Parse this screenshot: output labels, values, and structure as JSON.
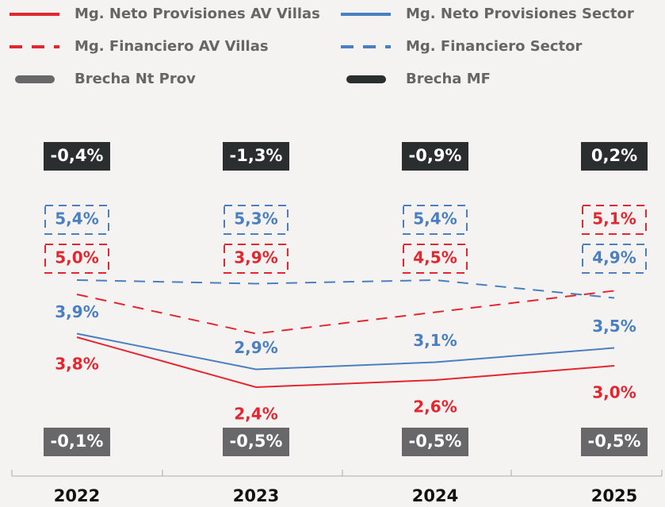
{
  "chart_data": {
    "type": "line",
    "categories": [
      "2022",
      "2023",
      "2024",
      "2025"
    ],
    "series": [
      {
        "name": "Mg. Neto Provisiones AV Villas",
        "color": "#e3262f",
        "line_style": "solid",
        "values": [
          3.8,
          2.4,
          2.6,
          3.0
        ],
        "value_labels": [
          "3,8%",
          "2,4%",
          "2,6%",
          "3,0%"
        ]
      },
      {
        "name": "Mg. Neto Provisiones Sector",
        "color": "#4a7fc1",
        "line_style": "solid",
        "values": [
          3.9,
          2.9,
          3.1,
          3.5
        ],
        "value_labels": [
          "3,9%",
          "2,9%",
          "3,1%",
          "3,5%"
        ]
      },
      {
        "name": "Mg. Financiero AV Villas",
        "color": "#e3262f",
        "line_style": "dashed",
        "values": [
          5.0,
          3.9,
          4.5,
          5.1
        ],
        "value_labels": [
          "5,0%",
          "3,9%",
          "4,5%",
          "5,1%"
        ]
      },
      {
        "name": "Mg. Financiero Sector",
        "color": "#4a7fc1",
        "line_style": "dashed",
        "values": [
          5.4,
          5.3,
          5.4,
          4.9
        ],
        "value_labels": [
          "5,4%",
          "5,3%",
          "5,4%",
          "4,9%"
        ]
      },
      {
        "name": "Brecha Nt Prov",
        "color": "#68686a",
        "line_style": "box",
        "values": [
          -0.1,
          -0.5,
          -0.5,
          -0.5
        ],
        "value_labels": [
          "-0,1%",
          "-0,5%",
          "-0,5%",
          "-0,5%"
        ]
      },
      {
        "name": "Brecha MF",
        "color": "#2a2e2e",
        "line_style": "box",
        "values": [
          -0.4,
          -1.3,
          -0.9,
          0.2
        ],
        "value_labels": [
          "-0,4%",
          "-1,3%",
          "-0,9%",
          "0,2%"
        ]
      }
    ]
  }
}
